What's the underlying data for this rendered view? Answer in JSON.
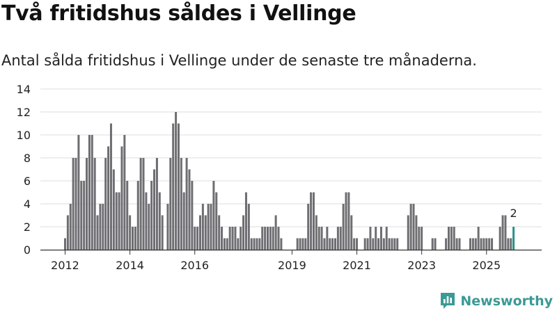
{
  "header": {
    "title": "Två fritidshus såldes i Vellinge",
    "subtitle": "Antal sålda fritidshus i Vellinge under de senaste tre månaderna."
  },
  "brand": {
    "name": "Newsworthy",
    "icon": "newsworthy-logo-icon"
  },
  "colors": {
    "bar": "#6e6d71",
    "highlight": "#2a918b",
    "grid": "#dddddd",
    "brand": "#3a9a95"
  },
  "chart_data": {
    "type": "bar",
    "title": "Två fritidshus såldes i Vellinge",
    "subtitle": "Antal sålda fritidshus i Vellinge under de senaste tre månaderna.",
    "xlabel": "",
    "ylabel": "",
    "ylim": [
      0,
      14
    ],
    "y_ticks": [
      0,
      2,
      4,
      6,
      8,
      10,
      12,
      14
    ],
    "grid": true,
    "period": "monthly, rolling three-month count",
    "start": "2012-01",
    "x_ticks": [
      {
        "label": "2012",
        "index": 0
      },
      {
        "label": "2014",
        "index": 24
      },
      {
        "label": "2016",
        "index": 48
      },
      {
        "label": "2019",
        "index": 84
      },
      {
        "label": "2021",
        "index": 108
      },
      {
        "label": "2023",
        "index": 132
      },
      {
        "label": "2025",
        "index": 156
      }
    ],
    "values": [
      1,
      3,
      4,
      8,
      8,
      10,
      6,
      6,
      8,
      10,
      10,
      8,
      3,
      4,
      4,
      8,
      9,
      11,
      7,
      5,
      5,
      9,
      10,
      6,
      3,
      2,
      2,
      6,
      8,
      8,
      5,
      4,
      6,
      7,
      8,
      5,
      3,
      0,
      4,
      8,
      11,
      12,
      11,
      8,
      5,
      8,
      7,
      6,
      2,
      2,
      3,
      4,
      3,
      4,
      4,
      6,
      5,
      3,
      2,
      1,
      1,
      2,
      2,
      2,
      1,
      2,
      3,
      5,
      4,
      1,
      1,
      1,
      1,
      2,
      2,
      2,
      2,
      2,
      3,
      2,
      1,
      0,
      0,
      0,
      0,
      0,
      1,
      1,
      1,
      1,
      4,
      5,
      5,
      3,
      2,
      2,
      1,
      2,
      1,
      1,
      1,
      2,
      2,
      4,
      5,
      5,
      3,
      1,
      1,
      0,
      0,
      1,
      1,
      2,
      1,
      2,
      1,
      2,
      1,
      2,
      1,
      1,
      1,
      1,
      0,
      0,
      0,
      3,
      4,
      4,
      3,
      2,
      2,
      0,
      0,
      0,
      1,
      1,
      0,
      0,
      0,
      1,
      2,
      2,
      2,
      1,
      1,
      0,
      0,
      0,
      1,
      1,
      1,
      2,
      1,
      1,
      1,
      1,
      1,
      0,
      0,
      2,
      3,
      3,
      1,
      1,
      2
    ],
    "highlight": {
      "index": 166,
      "value": 2,
      "label": "2"
    }
  }
}
